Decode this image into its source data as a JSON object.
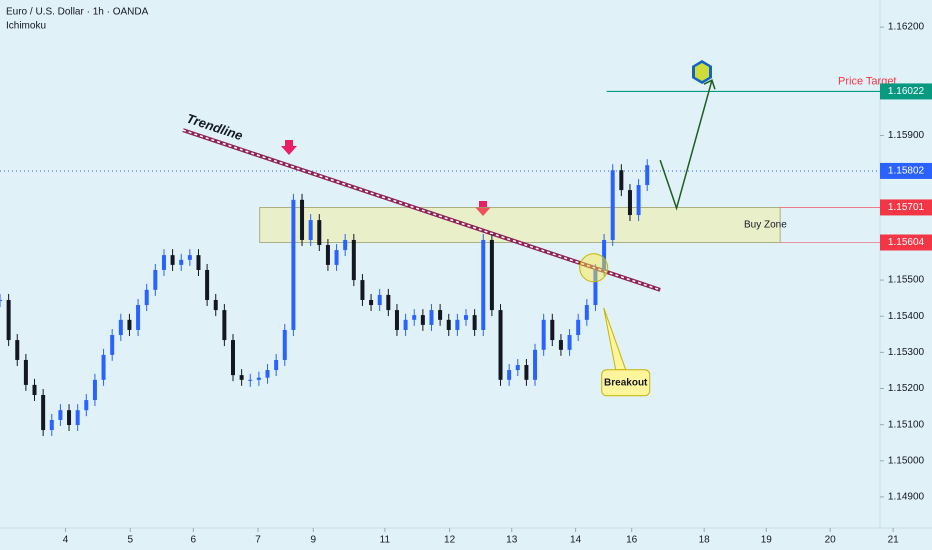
{
  "chart_data": {
    "type": "candlestick",
    "title": "Euro / U.S. Dollar · 1h · OANDA",
    "subtitle": "Ichimoku",
    "x": [
      0,
      1,
      2,
      3,
      4,
      5,
      6,
      7,
      8,
      9,
      10,
      11,
      12,
      13,
      14,
      15,
      16,
      17,
      18,
      19,
      20,
      21,
      22,
      23,
      24,
      25,
      26,
      27,
      28,
      29,
      30,
      31,
      32,
      33,
      34,
      35,
      36,
      37,
      38,
      39,
      40,
      41,
      42,
      43,
      44,
      45,
      46,
      47,
      48,
      49,
      50,
      51,
      52,
      53,
      54,
      55,
      56,
      57,
      58,
      59,
      60,
      61,
      62,
      63,
      64,
      65,
      66,
      67,
      68,
      69,
      70,
      71,
      72,
      73,
      74,
      75
    ],
    "values": [
      1.15445,
      1.15334,
      1.15279,
      1.1521,
      1.15182,
      1.15085,
      1.15113,
      1.1514,
      1.15099,
      1.1514,
      1.15168,
      1.15224,
      1.15293,
      1.15348,
      1.1539,
      1.15362,
      1.15431,
      1.15473,
      1.15528,
      1.15569,
      1.15542,
      1.15556,
      1.15569,
      1.15528,
      1.15445,
      1.15417,
      1.15334,
      1.15237,
      1.15224,
      1.15224,
      1.1523,
      1.15251,
      1.15279,
      1.15362,
      1.15722,
      1.15611,
      1.15666,
      1.15597,
      1.15542,
      1.15583,
      1.15611,
      1.155,
      1.15445,
      1.15431,
      1.15459,
      1.15417,
      1.15362,
      1.1539,
      1.15403,
      1.15376,
      1.15417,
      1.1539,
      1.15362,
      1.1539,
      1.15403,
      1.15362,
      1.15611,
      1.15417,
      1.15224,
      1.15251,
      1.15265,
      1.15224,
      1.15307,
      1.1539,
      1.15334,
      1.15307,
      1.15348,
      1.1539,
      1.15431,
      1.15528,
      1.15611,
      1.15804,
      1.15749,
      1.1568,
      1.15763,
      1.15818
    ],
    "up_color": "#2962ff",
    "down_color": "#131722",
    "xlim": [
      0,
      108
    ],
    "xticks": [
      {
        "value": 7.6,
        "label": "4"
      },
      {
        "value": 15.1,
        "label": "5"
      },
      {
        "value": 22.4,
        "label": "6"
      },
      {
        "value": 29.9,
        "label": "7"
      },
      {
        "value": 36.3,
        "label": "9"
      },
      {
        "value": 44.6,
        "label": "11"
      },
      {
        "value": 52.1,
        "label": "12"
      },
      {
        "value": 59.3,
        "label": "13"
      },
      {
        "value": 66.7,
        "label": "14"
      },
      {
        "value": 73.2,
        "label": "16"
      },
      {
        "value": 81.6,
        "label": "18"
      },
      {
        "value": 88.8,
        "label": "19"
      },
      {
        "value": 96.2,
        "label": "20"
      },
      {
        "value": 103.5,
        "label": "21"
      }
    ],
    "ylim": [
      1.14814,
      1.16275
    ],
    "yticks": [
      {
        "value": 1.162,
        "label": "1.16200"
      },
      {
        "value": 1.159,
        "label": "1.15900"
      },
      {
        "value": 1.155,
        "label": "1.15500"
      },
      {
        "value": 1.154,
        "label": "1.15400"
      },
      {
        "value": 1.153,
        "label": "1.15300"
      },
      {
        "value": 1.152,
        "label": "1.15200"
      },
      {
        "value": 1.151,
        "label": "1.15100"
      },
      {
        "value": 1.15,
        "label": "1.15000"
      },
      {
        "value": 1.149,
        "label": "1.14900"
      }
    ],
    "current_price": 1.15802,
    "current_color": "#2962ff",
    "price_target": {
      "label": "Price Target",
      "value": 1.16022,
      "x_start": 70.3,
      "color": "#089981"
    },
    "buy_zone": {
      "label": "Buy Zone",
      "low": 1.15604,
      "high": 1.15701,
      "x": [
        30.1,
        90.4
      ],
      "color": "#f23645"
    },
    "trendline": {
      "label": "Trendline",
      "x": [
        21.2,
        76.5
      ],
      "y": [
        1.15915,
        1.15473
      ]
    },
    "projection": {
      "x": [
        76.5,
        78.4,
        82.5
      ],
      "y": [
        1.15832,
        1.15699,
        1.16053
      ],
      "color": "#1b5e20"
    },
    "breakout": {
      "label": "Breakout",
      "x": 68.8,
      "y": 1.15534
    }
  }
}
